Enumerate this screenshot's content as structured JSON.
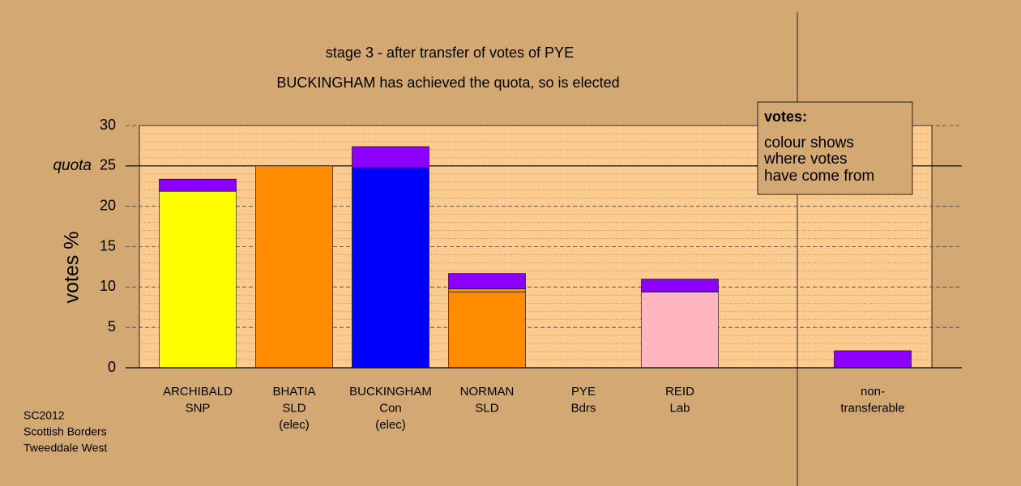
{
  "chart_data": {
    "type": "stacked-bar",
    "title": "stage 3 - after transfer of votes of PYE",
    "subtitle": "BUCKINGHAM has achieved the quota, so is elected",
    "y_label": "votes %",
    "categories": [
      [
        "ARCHIBALD",
        "SNP"
      ],
      [
        "BHATIA",
        "SLD",
        "(elec)"
      ],
      [
        "BUCKINGHAM",
        "Con",
        "(elec)"
      ],
      [
        "NORMAN",
        "SLD"
      ],
      [
        "PYE",
        "Bdrs"
      ],
      [
        "REID",
        "Lab"
      ],
      null,
      [
        "non-",
        "transferable"
      ]
    ],
    "series": [
      {
        "colors": [
          "#ffff00",
          "#ff8c00",
          "#0000ff",
          "#ff8c00",
          "#2e8b57",
          "#ffb6c1",
          null,
          "#8b00ff"
        ],
        "values": [
          21.85,
          25.0,
          24.77,
          9.37,
          0,
          9.37,
          null,
          0
        ]
      },
      {
        "color": "#ff8c00",
        "values": [
          0,
          0,
          0,
          0.4,
          0,
          0,
          null,
          0
        ]
      },
      {
        "color": "#8b00ff",
        "values": [
          1.51,
          0,
          2.62,
          1.91,
          0,
          1.61,
          null,
          2.11
        ]
      }
    ],
    "ylim": [
      0,
      30
    ],
    "yticks": [
      0,
      5,
      10,
      15,
      20,
      25,
      30
    ],
    "minor_yticks": [
      1,
      2,
      3,
      4,
      6,
      7,
      8,
      9,
      11,
      12,
      13,
      14,
      16,
      17,
      18,
      19,
      21,
      22,
      23,
      24,
      26,
      27,
      28,
      29
    ],
    "quota": {
      "value": 25,
      "label": "quota"
    },
    "grid": true,
    "legend_box": {
      "title": "votes:",
      "lines": [
        "colour shows",
        "where votes",
        "have come from"
      ]
    },
    "footnote": [
      "SC2012",
      "Scottish Borders",
      "Tweeddale West"
    ]
  }
}
